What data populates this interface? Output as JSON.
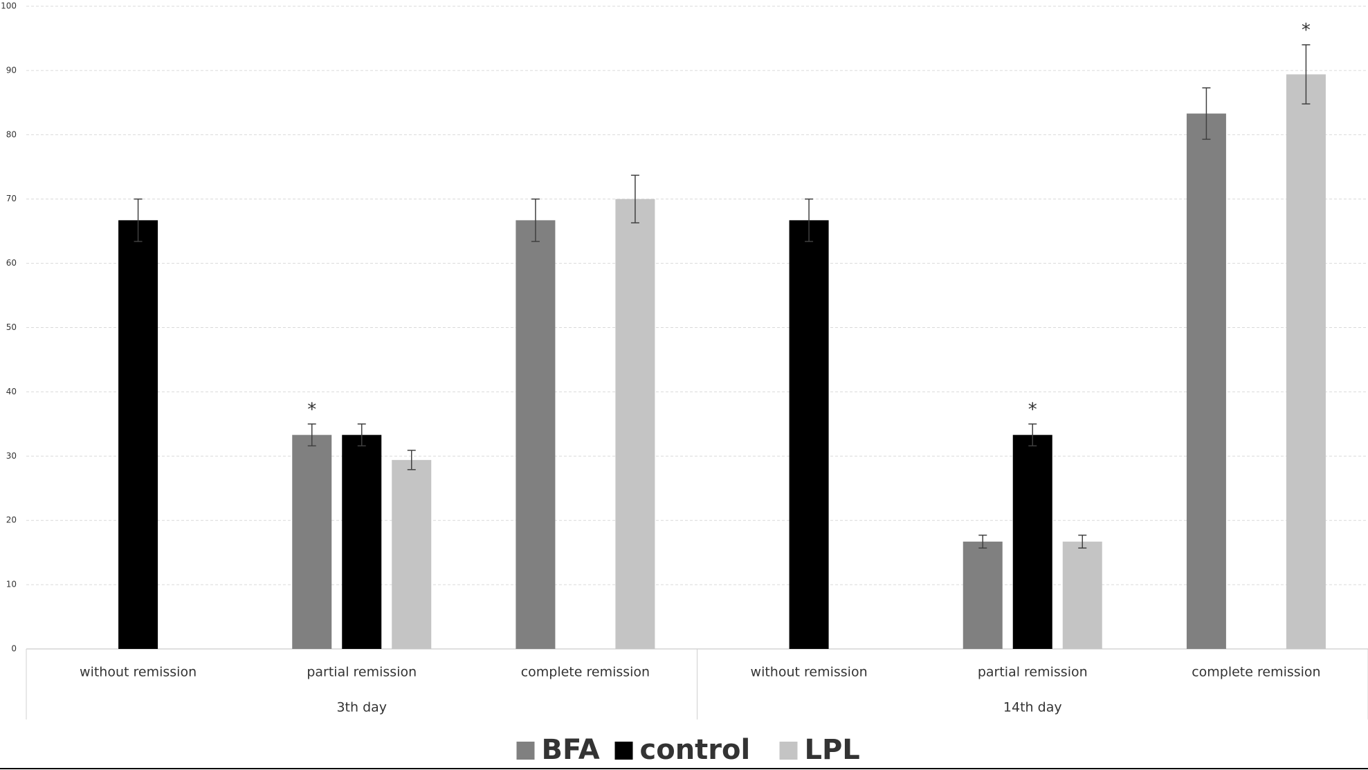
{
  "chart_data": {
    "type": "bar",
    "categories": [
      "without remission",
      "partial remission",
      "complete remission",
      "without remission",
      "partial remission",
      "complete remission"
    ],
    "groups": [
      {
        "label": "3th day",
        "span": 3
      },
      {
        "label": "14th day",
        "span": 3
      }
    ],
    "series": [
      {
        "name": "BFA",
        "color": "#808080",
        "values": [
          null,
          33.3,
          66.7,
          null,
          16.7,
          83.3
        ],
        "errors": [
          null,
          1.7,
          3.3,
          null,
          1,
          4
        ]
      },
      {
        "name": "control",
        "color": "#000000",
        "values": [
          66.7,
          33.3,
          null,
          66.7,
          33.3,
          null
        ],
        "errors": [
          3.3,
          1.7,
          null,
          3.3,
          1.7,
          null
        ]
      },
      {
        "name": "LPL",
        "color": "#c4c4c4",
        "values": [
          null,
          29.4,
          70,
          null,
          16.7,
          89.4
        ],
        "errors": [
          null,
          1.5,
          3.7,
          null,
          1,
          4.6
        ]
      }
    ],
    "annotations": [
      {
        "text": "*",
        "series": 0,
        "category": 1
      },
      {
        "text": "*",
        "series": 1,
        "category": 4
      },
      {
        "text": "*",
        "series": 2,
        "category": 5
      }
    ],
    "ylim": [
      0,
      100
    ],
    "yticks": [
      0,
      10,
      20,
      30,
      40,
      50,
      60,
      70,
      80,
      90,
      100
    ],
    "grid": true,
    "legend": "bottom"
  }
}
